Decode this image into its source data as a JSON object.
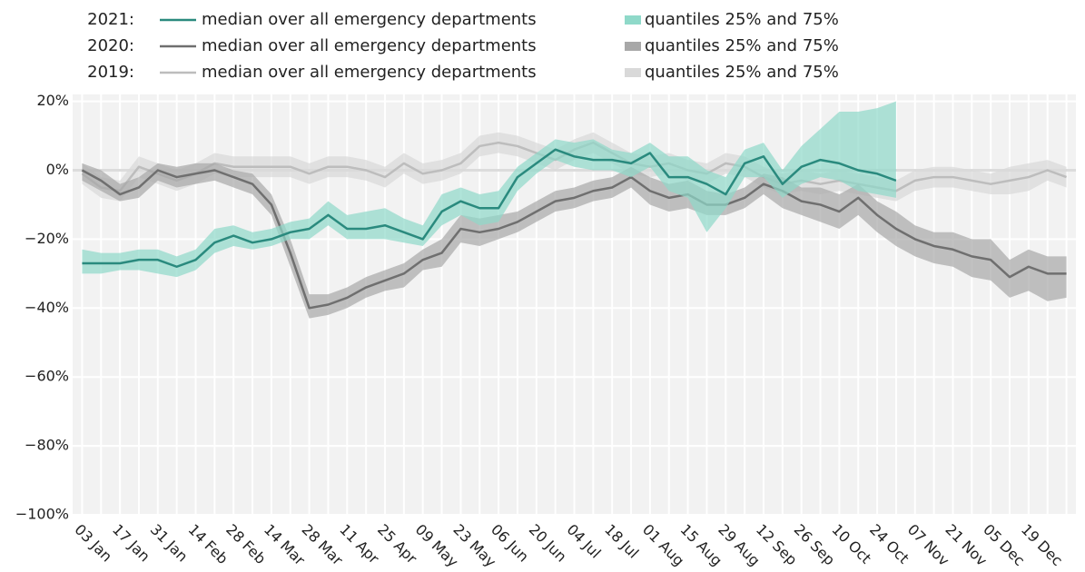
{
  "chart_data": {
    "type": "line",
    "categories": [
      "03 Jan",
      null,
      "17 Jan",
      null,
      "31 Jan",
      null,
      "14 Feb",
      null,
      "28 Feb",
      null,
      "14 Mar",
      null,
      "28 Mar",
      null,
      "11 Apr",
      null,
      "25 Apr",
      null,
      "09 May",
      null,
      "23 May",
      null,
      "06 Jun",
      null,
      "20 Jun",
      null,
      "04 Jul",
      null,
      "18 Jul",
      null,
      "01 Aug",
      null,
      "15 Aug",
      null,
      "29 Aug",
      null,
      "12 Sep",
      null,
      "26 Sep",
      null,
      "10 Oct",
      null,
      "24 Oct",
      null,
      "07 Nov",
      null,
      "21 Nov",
      null,
      "05 Dec",
      null,
      "19 Dec",
      null,
      null
    ],
    "ylim": [
      -100,
      22
    ],
    "yticks": [
      {
        "value": -100,
        "label": "−100%"
      },
      {
        "value": -80,
        "label": "−80%"
      },
      {
        "value": -60,
        "label": "−60%"
      },
      {
        "value": -40,
        "label": "−40%"
      },
      {
        "value": -20,
        "label": "−20%"
      },
      {
        "value": 0,
        "label": "0%"
      },
      {
        "value": 20,
        "label": "20%"
      }
    ],
    "grid": true,
    "zeroline": true,
    "series": [
      {
        "label": "2021:",
        "name": "median over all emergency departments",
        "color": "#2a8a7e",
        "band_name": "quantiles 25% and 75%",
        "band_color": "#8fd9c9",
        "values": [
          -27,
          -27,
          -27,
          -26,
          -26,
          -28,
          -26,
          -21,
          -19,
          -21,
          -20,
          -18,
          -17,
          -13,
          -17,
          -17,
          -16,
          -18,
          -20,
          -12,
          -9,
          -11,
          -11,
          -2,
          2,
          6,
          4,
          3,
          3,
          2,
          5,
          -2,
          -2,
          -4,
          -7,
          2,
          4,
          -4,
          1,
          3,
          2,
          0,
          -1,
          -3,
          null,
          null,
          null,
          null,
          null,
          null,
          null,
          null,
          null
        ],
        "q25": [
          -30,
          -30,
          -29,
          -29,
          -30,
          -31,
          -29,
          -24,
          -22,
          -23,
          -22,
          -20,
          -20,
          -16,
          -20,
          -20,
          -20,
          -21,
          -22,
          -16,
          -13,
          -16,
          -15,
          -6,
          -1,
          3,
          1,
          0,
          0,
          -2,
          1,
          -6,
          -8,
          -18,
          -11,
          -2,
          -2,
          -8,
          -4,
          -2,
          -3,
          -6,
          -7,
          -8,
          null,
          null,
          null,
          null,
          null,
          null,
          null,
          null,
          null
        ],
        "q75": [
          -23,
          -24,
          -24,
          -23,
          -23,
          -25,
          -23,
          -17,
          -16,
          -18,
          -17,
          -15,
          -14,
          -9,
          -13,
          -12,
          -11,
          -14,
          -16,
          -7,
          -5,
          -7,
          -6,
          1,
          5,
          9,
          8,
          9,
          6,
          5,
          8,
          4,
          4,
          0,
          -2,
          6,
          8,
          0,
          7,
          12,
          17,
          17,
          18,
          20,
          null,
          null,
          null,
          null,
          null,
          null,
          null,
          null,
          null
        ]
      },
      {
        "label": "2020:",
        "name": "median over all emergency departments",
        "color": "#6f6f6f",
        "band_name": "quantiles 25% and 75%",
        "band_color": "#a8a8a8",
        "values": [
          0,
          -3,
          -7,
          -5,
          0,
          -2,
          -1,
          0,
          -2,
          -4,
          -10,
          -24,
          -40,
          -39,
          -37,
          -34,
          -32,
          -30,
          -26,
          -24,
          -17,
          -18,
          -17,
          -15,
          -12,
          -9,
          -8,
          -6,
          -5,
          -2,
          -6,
          -8,
          -7,
          -10,
          -10,
          -8,
          -4,
          -6,
          -9,
          -10,
          -12,
          -8,
          -13,
          -17,
          -20,
          -22,
          -23,
          -25,
          -26,
          -31,
          -28,
          -30,
          -30
        ],
        "q25": [
          -3,
          -6,
          -9,
          -8,
          -3,
          -5,
          -4,
          -3,
          -5,
          -7,
          -13,
          -28,
          -43,
          -42,
          -40,
          -37,
          -35,
          -34,
          -29,
          -28,
          -21,
          -22,
          -20,
          -18,
          -15,
          -12,
          -11,
          -9,
          -8,
          -5,
          -10,
          -12,
          -11,
          -13,
          -13,
          -11,
          -7,
          -11,
          -13,
          -15,
          -17,
          -13,
          -18,
          -22,
          -25,
          -27,
          -28,
          -31,
          -32,
          -37,
          -35,
          -38,
          -37
        ],
        "q75": [
          2,
          0,
          -4,
          -2,
          2,
          1,
          2,
          2,
          0,
          -1,
          -7,
          -20,
          -36,
          -36,
          -34,
          -31,
          -29,
          -27,
          -23,
          -20,
          -13,
          -14,
          -13,
          -12,
          -9,
          -6,
          -5,
          -3,
          -2,
          1,
          -2,
          -4,
          -3,
          -6,
          -7,
          -5,
          -1,
          -2,
          -5,
          -5,
          -7,
          -4,
          -9,
          -12,
          -16,
          -18,
          -18,
          -20,
          -20,
          -26,
          -23,
          -25,
          -25
        ]
      },
      {
        "label": "2019:",
        "name": "median over all emergency departments",
        "color": "#bdbdbd",
        "band_name": "quantiles 25% and 75%",
        "band_color": "#d9d9d9",
        "values": [
          -1,
          -5,
          -6,
          1,
          -1,
          -3,
          -1,
          2,
          1,
          1,
          1,
          1,
          -1,
          1,
          1,
          0,
          -2,
          2,
          -1,
          0,
          2,
          7,
          8,
          7,
          5,
          3,
          6,
          8,
          5,
          2,
          1,
          2,
          0,
          -1,
          2,
          1,
          -2,
          -4,
          -3,
          -4,
          -3,
          -4,
          -5,
          -6,
          -3,
          -2,
          -2,
          -3,
          -4,
          -3,
          -2,
          0,
          -2
        ],
        "q25": [
          -4,
          -8,
          -9,
          -2,
          -4,
          -6,
          -4,
          -1,
          -2,
          -2,
          -2,
          -2,
          -4,
          -2,
          -2,
          -3,
          -5,
          -1,
          -4,
          -3,
          -1,
          4,
          5,
          4,
          2,
          0,
          3,
          5,
          2,
          -1,
          -2,
          -1,
          -3,
          -4,
          -1,
          -2,
          -5,
          -7,
          -6,
          -7,
          -6,
          -7,
          -8,
          -9,
          -6,
          -5,
          -5,
          -6,
          -7,
          -7,
          -6,
          -3,
          -5
        ],
        "q75": [
          2,
          -2,
          -3,
          4,
          2,
          0,
          2,
          5,
          4,
          4,
          4,
          4,
          2,
          4,
          4,
          3,
          1,
          5,
          2,
          3,
          5,
          10,
          11,
          10,
          8,
          6,
          9,
          11,
          8,
          5,
          4,
          5,
          3,
          2,
          5,
          4,
          1,
          -1,
          0,
          -1,
          0,
          -1,
          -2,
          -3,
          0,
          1,
          1,
          0,
          -1,
          1,
          2,
          3,
          1
        ]
      }
    ]
  }
}
